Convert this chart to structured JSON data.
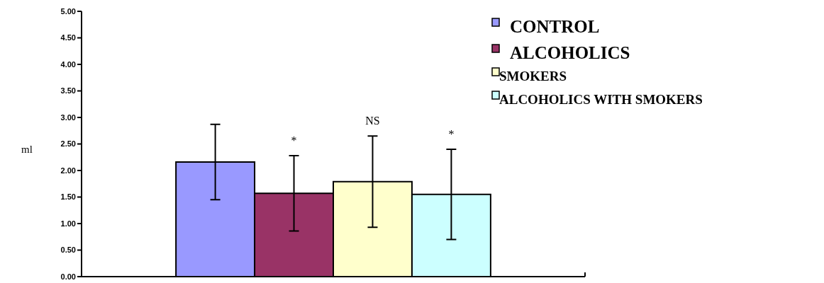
{
  "chart_data": {
    "type": "bar",
    "ylabel": "ml",
    "categories": [
      null
    ],
    "series": [
      {
        "name": "CONTROL",
        "color": "#9999ff",
        "values": [
          2.16
        ],
        "errors": [
          0.71
        ]
      },
      {
        "name": "ALCOHOLICS",
        "color": "#993366",
        "values": [
          1.57
        ],
        "errors": [
          0.71
        ]
      },
      {
        "name": "SMOKERS",
        "color": "#ffffcc",
        "values": [
          1.79
        ],
        "errors": [
          0.86
        ]
      },
      {
        "name": "ALCOHOLICS WITH SMOKERS",
        "color": "#ccffff",
        "values": [
          1.55
        ],
        "errors": [
          0.85
        ]
      }
    ],
    "annotations": [
      "*",
      "NS",
      "*"
    ],
    "ylim": [
      0,
      5
    ],
    "yticks": [
      {
        "value": 0,
        "label": "0.00"
      },
      {
        "value": 0.5,
        "label": "0.50"
      },
      {
        "value": 1,
        "label": "1.00"
      },
      {
        "value": 1.5,
        "label": "1.50"
      },
      {
        "value": 2,
        "label": "2.00"
      },
      {
        "value": 2.5,
        "label": "2.50"
      },
      {
        "value": 3,
        "label": "3.00"
      },
      {
        "value": 3.5,
        "label": "3.50"
      },
      {
        "value": 4,
        "label": "4.00"
      },
      {
        "value": 4.5,
        "label": "4.50"
      },
      {
        "value": 5,
        "label": "5.00"
      }
    ],
    "legend": "top right",
    "grid": false
  }
}
